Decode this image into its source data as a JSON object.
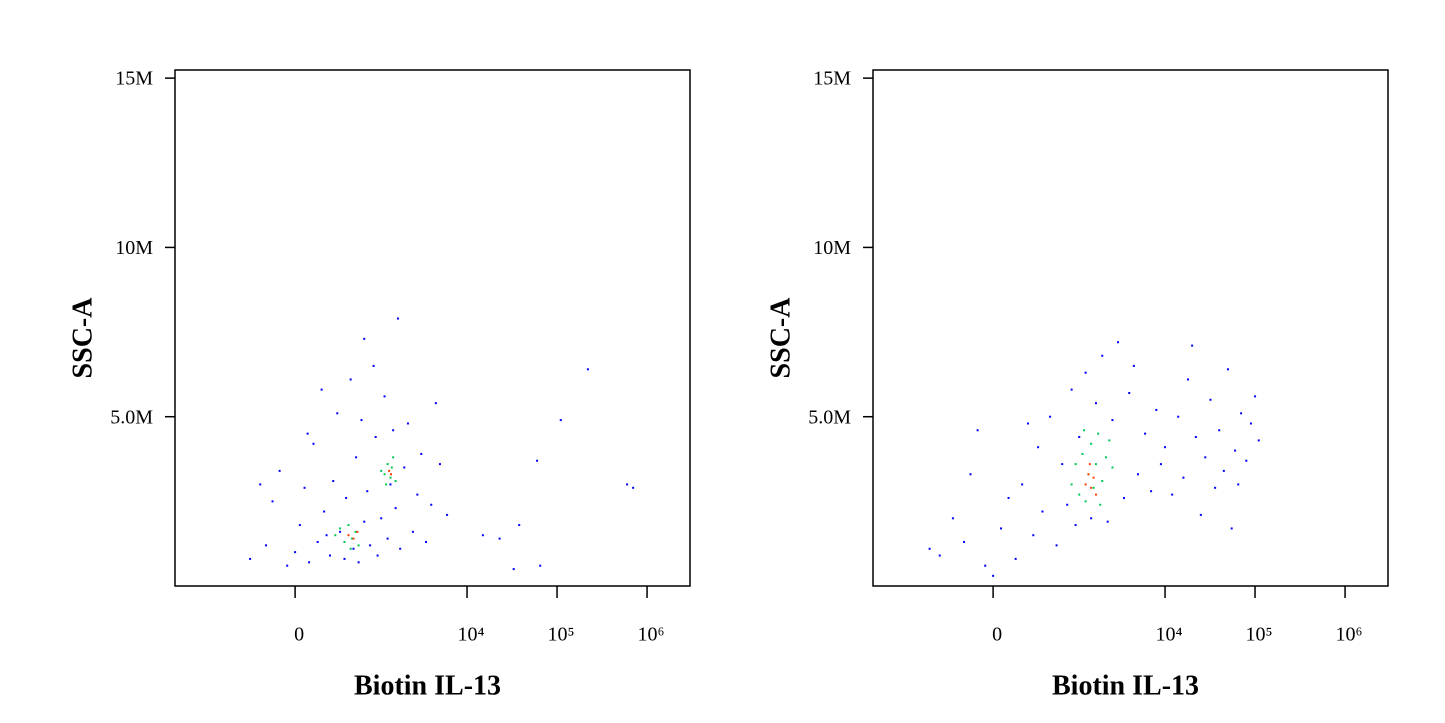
{
  "chart_data": [
    {
      "type": "scatter",
      "xlabel": "Biotin IL-13",
      "ylabel": "SSC-A",
      "xscale": "biexponential",
      "linear_width": 246,
      "xlim": [
        -2650,
        3000000
      ],
      "ylim": [
        0,
        15240000
      ],
      "xticks": [
        0,
        {
          "value": 10000,
          "label": "10⁴"
        },
        {
          "value": 100000,
          "label": "10⁵"
        },
        {
          "value": 1000000,
          "label": "10⁶"
        }
      ],
      "yticks": [
        {
          "value": 5000000,
          "label": "5.0M"
        },
        {
          "value": 10000000,
          "label": "10M"
        },
        {
          "value": 15000000,
          "label": "15M"
        }
      ],
      "series": [
        {
          "color": "#0000ff",
          "x": [
            -350,
            -200,
            -150,
            -100,
            -50,
            0,
            30,
            60,
            90,
            120,
            150,
            200,
            250,
            280,
            320,
            350,
            400,
            420,
            480,
            520,
            560,
            600,
            650,
            700,
            760,
            820,
            900,
            950,
            1000,
            1100,
            1200,
            1300,
            1400,
            1500,
            1600,
            1800,
            2000,
            2200,
            2500,
            2800,
            3100,
            3500,
            4000,
            4500,
            -250,
            80,
            180,
            220,
            700,
            1700,
            5000,
            6000,
            15000,
            23000,
            33000,
            38000,
            60000,
            65000,
            110000,
            220000,
            600000,
            700000
          ],
          "values": [
            800000,
            1200000,
            2500000,
            3400000,
            600000,
            1000000,
            1800000,
            2900000,
            700000,
            4200000,
            1300000,
            2200000,
            900000,
            3100000,
            5100000,
            1600000,
            800000,
            2600000,
            6100000,
            1100000,
            3800000,
            700000,
            4900000,
            1900000,
            2800000,
            1200000,
            6500000,
            4400000,
            900000,
            2000000,
            5600000,
            1400000,
            3000000,
            4600000,
            2300000,
            1100000,
            3500000,
            4800000,
            1600000,
            2700000,
            3900000,
            1300000,
            2400000,
            5400000,
            3000000,
            4500000,
            5800000,
            1500000,
            7300000,
            7900000,
            3600000,
            2100000,
            1500000,
            1400000,
            500000,
            1800000,
            3700000,
            600000,
            4900000,
            6400000,
            3000000,
            2900000
          ]
        },
        {
          "color": "#00c850",
          "x": [
            300,
            400,
            450,
            500,
            550,
            600,
            350,
            480,
            1200,
            1300,
            1400,
            1500,
            1250,
            1450,
            1100,
            1600
          ],
          "values": [
            1500000,
            1300000,
            1800000,
            1400000,
            1600000,
            1200000,
            1700000,
            1100000,
            3300000,
            3600000,
            3200000,
            3800000,
            3000000,
            3500000,
            3400000,
            3100000
          ]
        },
        {
          "color": "#ff4000",
          "x": [
            450,
            520,
            580,
            1350,
            1420
          ],
          "values": [
            1500000,
            1400000,
            1600000,
            3400000,
            3300000
          ]
        }
      ]
    },
    {
      "type": "scatter",
      "xlabel": "Biotin IL-13",
      "ylabel": "SSC-A",
      "xscale": "biexponential",
      "linear_width": 246,
      "xlim": [
        -2650,
        3000000
      ],
      "ylim": [
        0,
        15240000
      ],
      "xticks": [
        0,
        {
          "value": 10000,
          "label": "10⁴"
        },
        {
          "value": 100000,
          "label": "10⁵"
        },
        {
          "value": 1000000,
          "label": "10⁶"
        }
      ],
      "yticks": [
        {
          "value": 5000000,
          "label": "5.0M"
        },
        {
          "value": 10000000,
          "label": "10M"
        },
        {
          "value": 15000000,
          "label": "15M"
        }
      ],
      "series": [
        {
          "color": "#0000ff",
          "x": [
            -450,
            -300,
            -200,
            -150,
            -100,
            -50,
            0,
            50,
            100,
            150,
            200,
            300,
            350,
            400,
            500,
            600,
            700,
            800,
            900,
            1000,
            1100,
            1300,
            1500,
            1700,
            2000,
            2300,
            2600,
            3000,
            3500,
            4000,
            4500,
            5000,
            6000,
            7000,
            8000,
            9000,
            10000,
            12000,
            14000,
            16000,
            18000,
            20000,
            22000,
            25000,
            28000,
            32000,
            36000,
            40000,
            45000,
            50000,
            55000,
            60000,
            65000,
            70000,
            80000,
            90000,
            100000,
            110000,
            -600,
            250
          ],
          "values": [
            900000,
            2000000,
            1300000,
            3300000,
            4600000,
            600000,
            300000,
            1700000,
            2600000,
            800000,
            3000000,
            1500000,
            4100000,
            2200000,
            5000000,
            1200000,
            3600000,
            2400000,
            5800000,
            1800000,
            4400000,
            6300000,
            2000000,
            5400000,
            6800000,
            1900000,
            4900000,
            7200000,
            2600000,
            5700000,
            6500000,
            3300000,
            4500000,
            2800000,
            5200000,
            3600000,
            4100000,
            2700000,
            5000000,
            3200000,
            6100000,
            7100000,
            4400000,
            2100000,
            3800000,
            5500000,
            2900000,
            4600000,
            3400000,
            6400000,
            1700000,
            4000000,
            3000000,
            5100000,
            3700000,
            4800000,
            5600000,
            4300000,
            1100000,
            4800000
          ]
        },
        {
          "color": "#00c850",
          "x": [
            900,
            1000,
            1100,
            1200,
            1300,
            1400,
            1500,
            1600,
            1700,
            1800,
            2000,
            2200,
            2400,
            1250,
            1900,
            2600
          ],
          "values": [
            3000000,
            3600000,
            2700000,
            3900000,
            2500000,
            3300000,
            4200000,
            2900000,
            3600000,
            4500000,
            3100000,
            3800000,
            4300000,
            4600000,
            2400000,
            3500000
          ]
        },
        {
          "color": "#ff4000",
          "x": [
            1300,
            1400,
            1500,
            1600,
            1700,
            1450
          ],
          "values": [
            3000000,
            3300000,
            2900000,
            3200000,
            2700000,
            3600000
          ]
        }
      ]
    }
  ]
}
